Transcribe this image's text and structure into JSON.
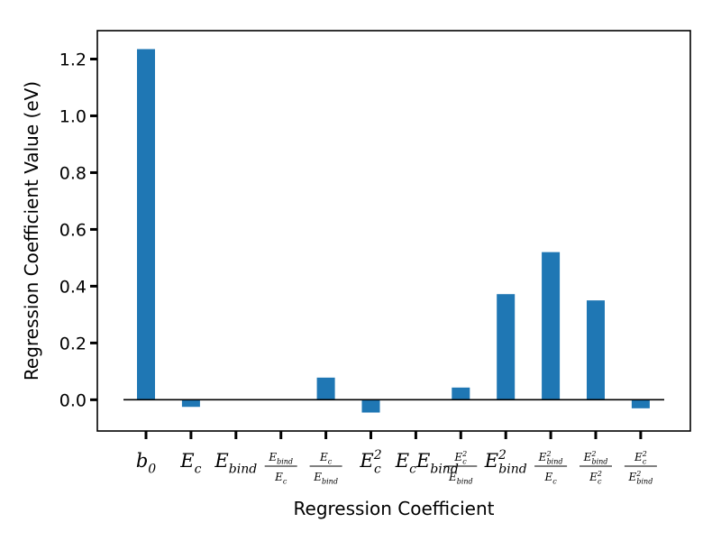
{
  "chart_data": {
    "type": "bar",
    "xlabel": "Regression Coefficient",
    "ylabel": "Regression Coefficient Value (eV)",
    "ylim": [
      -0.11,
      1.3
    ],
    "yticks": [
      0.0,
      0.2,
      0.4,
      0.6,
      0.8,
      1.0,
      1.2
    ],
    "ytick_labels": [
      "0.0",
      "0.2",
      "0.4",
      "0.6",
      "0.8",
      "1.0",
      "1.2"
    ],
    "bar_color": "#1f77b4",
    "grid": false,
    "baseline": 0,
    "categories": [
      {
        "kind": "sub",
        "base": "b",
        "sub": "0"
      },
      {
        "kind": "sub",
        "base": "E",
        "sub": "c"
      },
      {
        "kind": "sub",
        "base": "E",
        "sub": "bind"
      },
      {
        "kind": "frac",
        "num": {
          "base": "E",
          "sub": "bind"
        },
        "den": {
          "base": "E",
          "sub": "c"
        }
      },
      {
        "kind": "frac",
        "num": {
          "base": "E",
          "sub": "c"
        },
        "den": {
          "base": "E",
          "sub": "bind"
        }
      },
      {
        "kind": "supsub",
        "base": "E",
        "sup": "2",
        "sub": "c"
      },
      {
        "kind": "product",
        "a": {
          "base": "E",
          "sub": "c"
        },
        "b": {
          "base": "E",
          "sub": "bind"
        }
      },
      {
        "kind": "frac",
        "num": {
          "base": "E",
          "sup": "2",
          "sub": "c"
        },
        "den": {
          "base": "E",
          "sub": "bind"
        }
      },
      {
        "kind": "supsub",
        "base": "E",
        "sup": "2",
        "sub": "bind"
      },
      {
        "kind": "frac",
        "num": {
          "base": "E",
          "sup": "2",
          "sub": "bind"
        },
        "den": {
          "base": "E",
          "sub": "c"
        }
      },
      {
        "kind": "frac",
        "num": {
          "base": "E",
          "sup": "2",
          "sub": "bind"
        },
        "den": {
          "base": "E",
          "sup": "2",
          "sub": "c"
        }
      },
      {
        "kind": "frac",
        "num": {
          "base": "E",
          "sup": "2",
          "sub": "c"
        },
        "den": {
          "base": "E",
          "sup": "2",
          "sub": "bind"
        }
      }
    ],
    "values": [
      1.235,
      -0.025,
      0.0,
      0.0,
      0.078,
      -0.045,
      0.0,
      0.043,
      0.372,
      0.52,
      0.35,
      -0.03
    ]
  }
}
